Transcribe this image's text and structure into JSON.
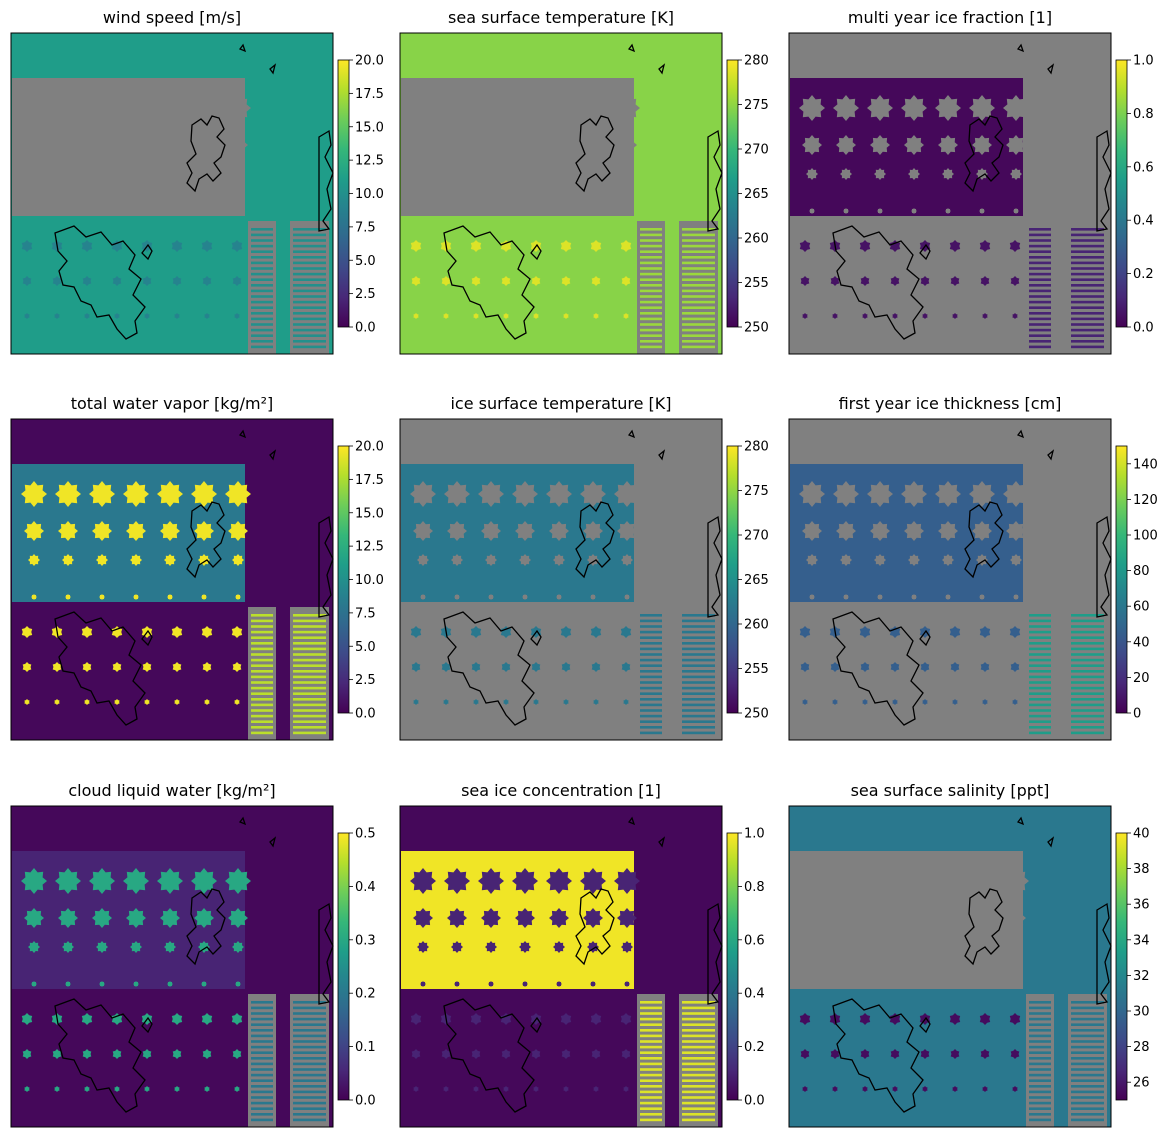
{
  "figure": {
    "colormap": "viridis",
    "missing_color": "#808080",
    "coastline_color": "#000000"
  },
  "chart_data": [
    {
      "type": "heatmap",
      "title": "wind speed [m/s]",
      "colorbar": {
        "ticks": [
          0.0,
          2.5,
          5.0,
          7.5,
          10.0,
          12.5,
          15.0,
          17.5,
          20.0
        ],
        "labels": [
          "0.0",
          "2.5",
          "5.0",
          "7.5",
          "10.0",
          "12.5",
          "15.0",
          "17.5",
          "20.0"
        ],
        "range": [
          0,
          20
        ]
      },
      "background_level": 0.55,
      "box_level": null,
      "dot_level": 0.45,
      "right_strip_level": 0.5
    },
    {
      "type": "heatmap",
      "title": "sea surface temperature [K]",
      "colorbar": {
        "ticks": [
          250,
          255,
          260,
          265,
          270,
          275,
          280
        ],
        "labels": [
          "250",
          "255",
          "260",
          "265",
          "270",
          "275",
          "280"
        ],
        "range": [
          250,
          280
        ]
      },
      "background_level": 0.82,
      "box_level": null,
      "dot_level": 0.95,
      "right_strip_level": 0.85
    },
    {
      "type": "heatmap",
      "title": "multi year ice fraction [1]",
      "colorbar": {
        "ticks": [
          0.0,
          0.2,
          0.4,
          0.6,
          0.8,
          1.0
        ],
        "labels": [
          "0.0",
          "0.2",
          "0.4",
          "0.6",
          "0.8",
          "1.0"
        ],
        "range": [
          0,
          1
        ]
      },
      "background_level": null,
      "box_level": 0.02,
      "dot_level": 0.05,
      "right_strip_level": 0.1
    },
    {
      "type": "heatmap",
      "title": "total water vapor [kg/m²]",
      "colorbar": {
        "ticks": [
          0.0,
          2.5,
          5.0,
          7.5,
          10.0,
          12.5,
          15.0,
          17.5,
          20.0
        ],
        "labels": [
          "0.0",
          "2.5",
          "5.0",
          "7.5",
          "10.0",
          "12.5",
          "15.0",
          "17.5",
          "20.0"
        ],
        "range": [
          0,
          20
        ]
      },
      "background_level": 0.02,
      "box_level": 0.4,
      "dot_level": 0.98,
      "right_strip_level": 0.9
    },
    {
      "type": "heatmap",
      "title": "ice surface temperature [K]",
      "colorbar": {
        "ticks": [
          250,
          255,
          260,
          265,
          270,
          275,
          280
        ],
        "labels": [
          "250",
          "255",
          "260",
          "265",
          "270",
          "275",
          "280"
        ],
        "range": [
          250,
          280
        ]
      },
      "background_level": null,
      "box_level": 0.4,
      "dot_level": 0.4,
      "right_strip_level": 0.4
    },
    {
      "type": "heatmap",
      "title": "first year ice thickness [cm]",
      "colorbar": {
        "ticks": [
          0,
          20,
          40,
          60,
          80,
          100,
          120,
          140
        ],
        "labels": [
          "0",
          "20",
          "40",
          "60",
          "80",
          "100",
          "120",
          "140"
        ],
        "range": [
          0,
          150
        ]
      },
      "background_level": null,
      "box_level": 0.3,
      "dot_level": 0.3,
      "right_strip_level": 0.55
    },
    {
      "type": "heatmap",
      "title": "cloud liquid water [kg/m²]",
      "colorbar": {
        "ticks": [
          0.0,
          0.1,
          0.2,
          0.3,
          0.4,
          0.5
        ],
        "labels": [
          "0.0",
          "0.1",
          "0.2",
          "0.3",
          "0.4",
          "0.5"
        ],
        "range": [
          0,
          0.5
        ]
      },
      "background_level": 0.02,
      "box_level": 0.1,
      "dot_level": 0.6,
      "right_strip_level": 0.4
    },
    {
      "type": "heatmap",
      "title": "sea ice concentration [1]",
      "colorbar": {
        "ticks": [
          0.0,
          0.2,
          0.4,
          0.6,
          0.8,
          1.0
        ],
        "labels": [
          "0.0",
          "0.2",
          "0.4",
          "0.6",
          "0.8",
          "1.0"
        ],
        "range": [
          0,
          1
        ]
      },
      "background_level": 0.02,
      "box_level": 0.98,
      "dot_level": 0.1,
      "right_strip_level": 0.95
    },
    {
      "type": "heatmap",
      "title": "sea surface salinity [ppt]",
      "colorbar": {
        "ticks": [
          26,
          28,
          30,
          32,
          34,
          36,
          38,
          40
        ],
        "labels": [
          "26",
          "28",
          "30",
          "32",
          "34",
          "36",
          "38",
          "40"
        ],
        "range": [
          25,
          40
        ]
      },
      "background_level": 0.4,
      "box_level": null,
      "dot_level": 0.03,
      "right_strip_level": 0.4
    }
  ]
}
